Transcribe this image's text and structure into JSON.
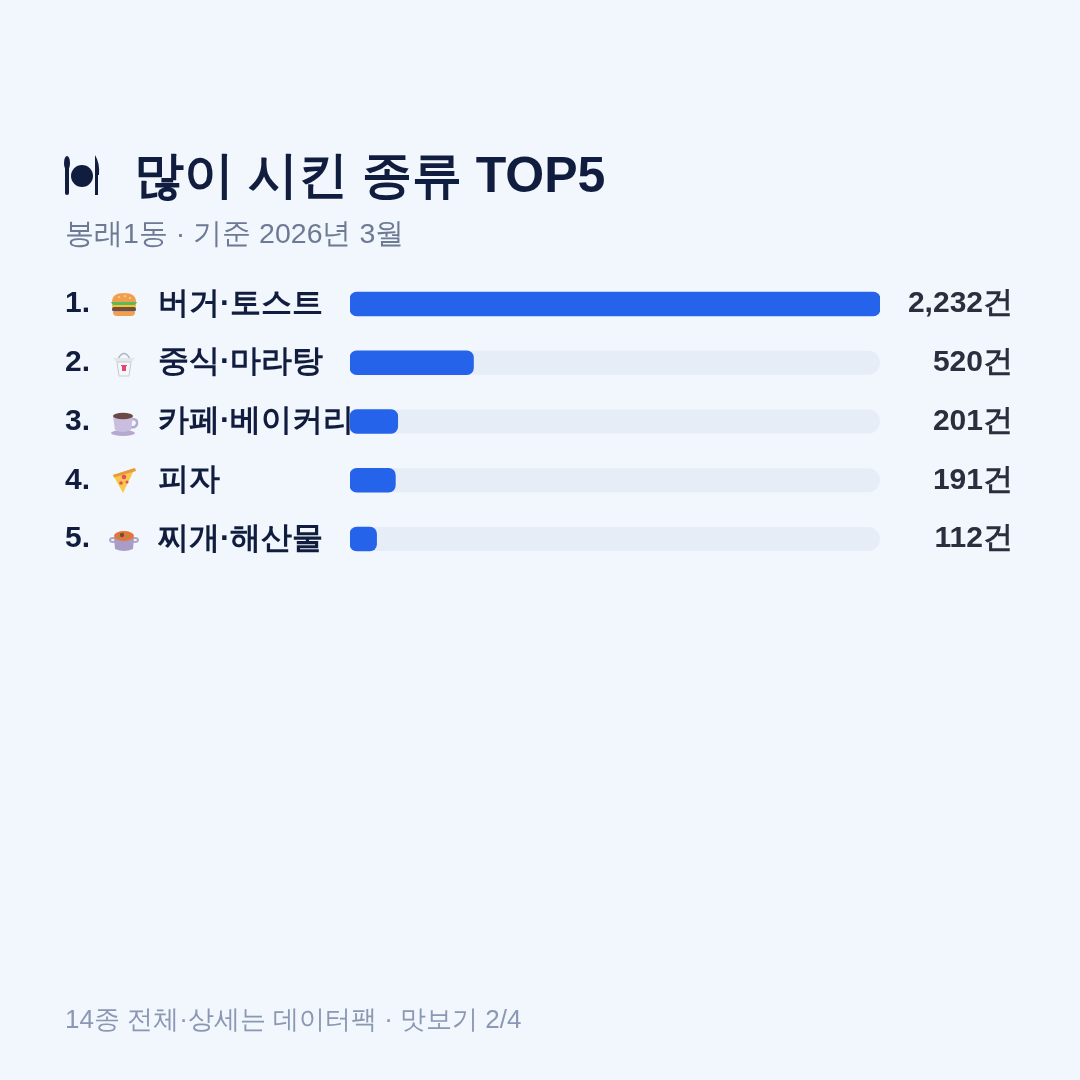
{
  "chart_data": {
    "type": "bar",
    "orientation": "horizontal",
    "title": "많이 시킨 종류 TOP5",
    "subtitle": "봉래1동 · 기준 2026년 3월",
    "categories": [
      "버거·토스트",
      "중식·마라탕",
      "카페·베이커리",
      "피자",
      "찌개·해산물"
    ],
    "values": [
      2232,
      520,
      201,
      191,
      112
    ],
    "color": "#2563eb",
    "value_labels": [
      "2,232건",
      "520건",
      "201건",
      "191건",
      "112건"
    ],
    "annotations": [
      "1.",
      "2.",
      "3.",
      "4.",
      "5.",
      "14종 전체·상세는 데이터팩 · 맛보기 2/4"
    ],
    "legend": false,
    "tick_labels": "y"
  }
}
